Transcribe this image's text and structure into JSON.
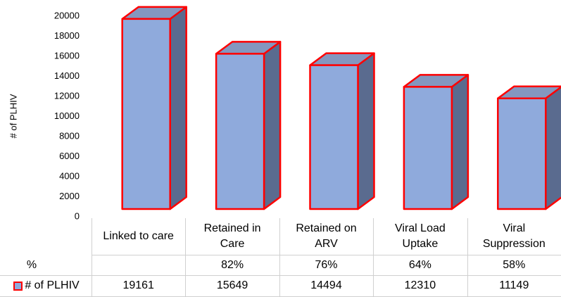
{
  "chart_data": {
    "type": "bar3d",
    "y_label": "# of PLHIV",
    "categories": [
      "Linked to care",
      "Retained in Care",
      "Retained on ARV",
      "Viral Load Uptake",
      "Viral Suppression"
    ],
    "series": [
      {
        "name": "# of PLHIV",
        "color": "#8faadc",
        "values": [
          19161,
          15649,
          14494,
          12310,
          11149
        ]
      }
    ],
    "percent_row": {
      "name": "%",
      "values": [
        null,
        82,
        76,
        64,
        58
      ],
      "value_labels": [
        null,
        "82%",
        "76%",
        "64%",
        "58%"
      ]
    },
    "ylim": [
      0,
      20000
    ],
    "yticks": [
      0,
      2000,
      4000,
      6000,
      8000,
      10000,
      12000,
      14000,
      16000,
      18000,
      20000
    ],
    "grid": false
  }
}
